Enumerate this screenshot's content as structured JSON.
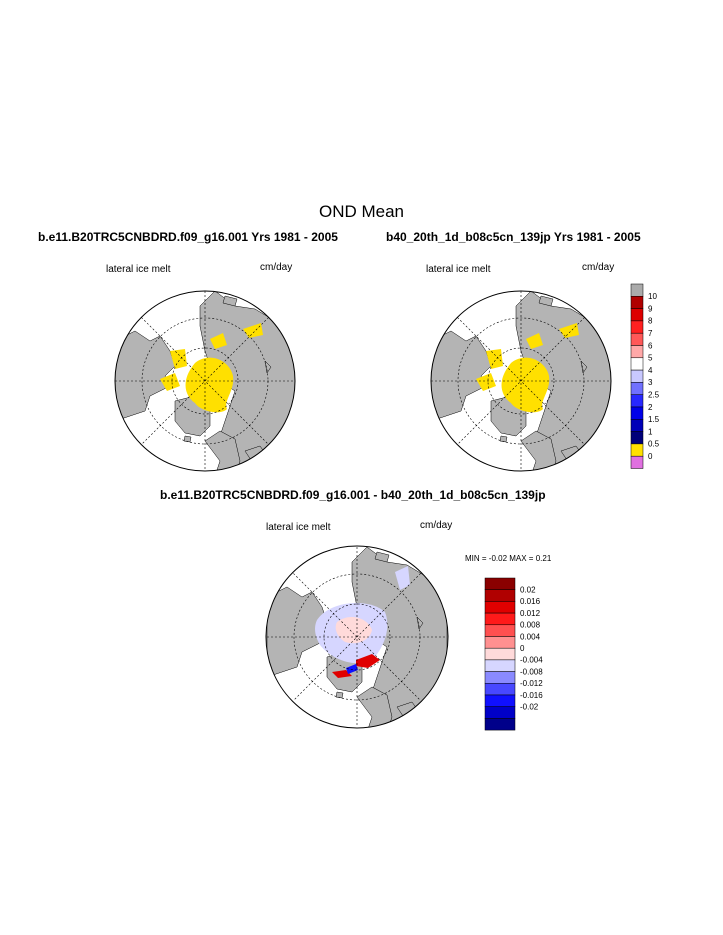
{
  "figure": {
    "title": "OND Mean",
    "panels": [
      {
        "id": "panel-left",
        "title": "b.e11.B20TRC5CNBDRD.f09_g16.001  Yrs 1981 - 2005",
        "field_label": "lateral ice melt",
        "units": "cm/day"
      },
      {
        "id": "panel-right",
        "title": "b40_20th_1d_b08c5cn_139jp  Yrs 1981 - 2005",
        "field_label": "lateral ice melt",
        "units": "cm/day"
      },
      {
        "id": "panel-diff",
        "title": "b.e11.B20TRC5CNBDRD.f09_g16.001 - b40_20th_1d_b08c5cn_139jp",
        "field_label": "lateral ice melt",
        "units": "cm/day",
        "min_max_text": "MIN =  -0.02 MAX =   0.21"
      }
    ],
    "colorbar_main": {
      "labels": [
        "10",
        "9",
        "8",
        "7",
        "6",
        "5",
        "4",
        "3",
        "2.5",
        "2",
        "1.5",
        "1",
        "0.5",
        "0"
      ],
      "colors": [
        "#aaaaaa",
        "#b00000",
        "#dd0000",
        "#ff2020",
        "#ff5858",
        "#ffa8a8",
        "#ffffff",
        "#c8c8ff",
        "#7070ff",
        "#2828ff",
        "#0000e8",
        "#0000b8",
        "#00007a",
        "#ffe000",
        "#e070e0"
      ]
    },
    "colorbar_diff": {
      "labels": [
        "0.02",
        "0.016",
        "0.012",
        "0.008",
        "0.004",
        "0",
        "-0.004",
        "-0.008",
        "-0.012",
        "-0.016",
        "-0.02"
      ],
      "colors": [
        "#8a0000",
        "#b00000",
        "#e00000",
        "#ff1a1a",
        "#ff5050",
        "#ff9090",
        "#ffdada",
        "#d6d6ff",
        "#8a8aff",
        "#4848ff",
        "#1010ff",
        "#0000c8",
        "#00008a"
      ]
    },
    "map_colors": {
      "land": "#b4b4b4",
      "ice_melt_low": "#ffe000",
      "ocean": "#ffffff",
      "diff_light_blue": "#d6d6ff",
      "diff_light_red": "#ffdada",
      "diff_red": "#e00000",
      "diff_blue": "#1010ff"
    }
  }
}
